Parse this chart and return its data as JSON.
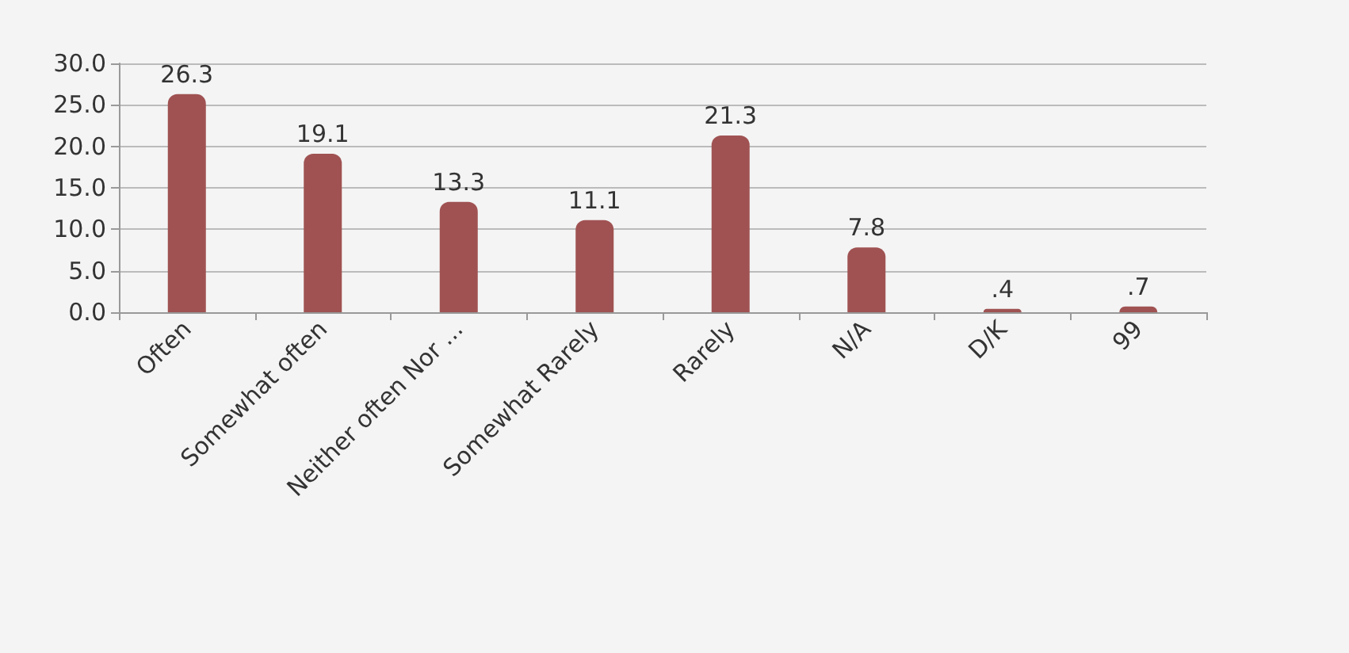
{
  "chart_data": {
    "type": "bar",
    "categories": [
      "Often",
      "Somewhat often",
      "Neither often Nor ...",
      "Somewhat Rarely",
      "Rarely",
      "N/A",
      "D/K",
      "99"
    ],
    "values": [
      26.3,
      19.1,
      13.3,
      11.1,
      21.3,
      7.8,
      0.4,
      0.7
    ],
    "value_labels": [
      "26.3",
      "19.1",
      "13.3",
      "11.1",
      "21.3",
      "7.8",
      ".4",
      ".7"
    ],
    "color": "#a05252",
    "ylim": [
      0,
      30
    ],
    "yticks": [
      {
        "value": 0,
        "label": "0.0"
      },
      {
        "value": 5,
        "label": "5.0"
      },
      {
        "value": 10,
        "label": "10.0"
      },
      {
        "value": 15,
        "label": "15.0"
      },
      {
        "value": 20,
        "label": "20.0"
      },
      {
        "value": 25,
        "label": "25.0"
      },
      {
        "value": 30,
        "label": "30.0"
      }
    ],
    "grid": "y"
  }
}
